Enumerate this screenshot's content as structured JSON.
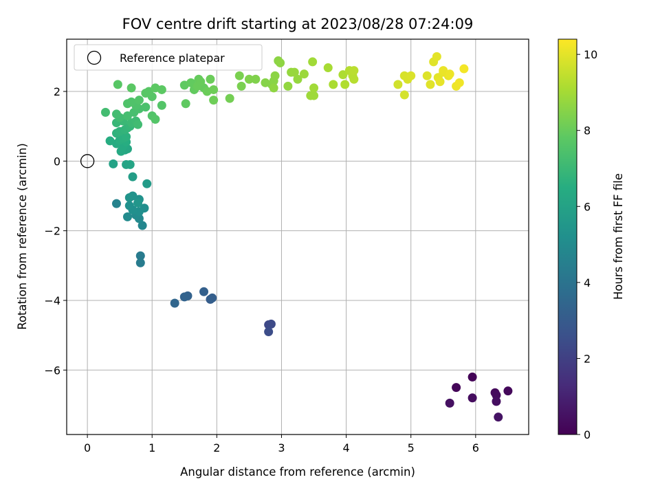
{
  "chart_data": {
    "type": "scatter",
    "title": "FOV centre drift starting at 2023/08/28 07:24:09",
    "xlabel": "Angular distance from reference (arcmin)",
    "ylabel": "Rotation from reference (arcmin)",
    "xlim": [
      -0.32,
      6.82
    ],
    "ylim": [
      -7.85,
      3.5
    ],
    "x_ticks": [
      0,
      1,
      2,
      3,
      4,
      5,
      6
    ],
    "y_ticks": [
      -6,
      -4,
      -2,
      0,
      2
    ],
    "grid": true,
    "legend": {
      "placement": "top-left",
      "entries": [
        "Reference platepar"
      ]
    },
    "reference_point": {
      "x": 0,
      "y": 0
    },
    "colorbar": {
      "label": "Hours from first FF file",
      "range": [
        0,
        10.4
      ],
      "ticks": [
        0,
        2,
        4,
        6,
        8,
        10
      ],
      "colormap": "viridis"
    },
    "series": [
      {
        "points": [
          {
            "x": 5.95,
            "y": -6.2,
            "c": 0.1
          },
          {
            "x": 5.7,
            "y": -6.5,
            "c": 0.15
          },
          {
            "x": 6.5,
            "y": -6.6,
            "c": 0.2
          },
          {
            "x": 6.3,
            "y": -6.65,
            "c": 0.25
          },
          {
            "x": 6.32,
            "y": -6.72,
            "c": 0.3
          },
          {
            "x": 5.95,
            "y": -6.8,
            "c": 0.35
          },
          {
            "x": 6.32,
            "y": -6.9,
            "c": 0.4
          },
          {
            "x": 5.6,
            "y": -6.95,
            "c": 0.45
          },
          {
            "x": 6.35,
            "y": -7.35,
            "c": 0.55
          },
          {
            "x": 2.8,
            "y": -4.7,
            "c": 2.3
          },
          {
            "x": 2.84,
            "y": -4.68,
            "c": 2.35
          },
          {
            "x": 2.8,
            "y": -4.9,
            "c": 2.45
          },
          {
            "x": 1.9,
            "y": -3.97,
            "c": 3.1
          },
          {
            "x": 1.93,
            "y": -3.93,
            "c": 3.15
          },
          {
            "x": 1.8,
            "y": -3.75,
            "c": 3.2
          },
          {
            "x": 1.55,
            "y": -3.87,
            "c": 3.3
          },
          {
            "x": 1.5,
            "y": -3.9,
            "c": 3.35
          },
          {
            "x": 1.35,
            "y": -4.08,
            "c": 3.45
          },
          {
            "x": 0.82,
            "y": -2.72,
            "c": 4.3
          },
          {
            "x": 0.82,
            "y": -2.92,
            "c": 4.35
          },
          {
            "x": 0.45,
            "y": -1.22,
            "c": 4.6
          },
          {
            "x": 0.85,
            "y": -1.85,
            "c": 4.8
          },
          {
            "x": 0.8,
            "y": -1.65,
            "c": 4.9
          },
          {
            "x": 0.75,
            "y": -1.55,
            "c": 5.0
          },
          {
            "x": 0.62,
            "y": -1.6,
            "c": 5.0
          },
          {
            "x": 0.88,
            "y": -1.35,
            "c": 5.1
          },
          {
            "x": 0.8,
            "y": -1.45,
            "c": 5.15
          },
          {
            "x": 0.7,
            "y": -1.4,
            "c": 5.2
          },
          {
            "x": 0.65,
            "y": -1.28,
            "c": 5.25
          },
          {
            "x": 0.8,
            "y": -1.1,
            "c": 5.3
          },
          {
            "x": 0.7,
            "y": -1.0,
            "c": 5.35
          },
          {
            "x": 0.65,
            "y": -1.05,
            "c": 5.4
          },
          {
            "x": 0.78,
            "y": -1.2,
            "c": 5.45
          },
          {
            "x": 0.92,
            "y": -0.65,
            "c": 5.7
          },
          {
            "x": 0.7,
            "y": -0.45,
            "c": 5.8
          },
          {
            "x": 0.4,
            "y": -0.08,
            "c": 6.0
          },
          {
            "x": 0.6,
            "y": -0.1,
            "c": 6.05
          },
          {
            "x": 0.66,
            "y": -0.1,
            "c": 6.1
          },
          {
            "x": 0.58,
            "y": 0.32,
            "c": 6.2
          },
          {
            "x": 0.62,
            "y": 0.35,
            "c": 6.25
          },
          {
            "x": 0.52,
            "y": 0.28,
            "c": 6.3
          },
          {
            "x": 0.55,
            "y": 0.42,
            "c": 6.35
          },
          {
            "x": 0.45,
            "y": 0.5,
            "c": 6.4
          },
          {
            "x": 0.35,
            "y": 0.58,
            "c": 6.45
          },
          {
            "x": 0.6,
            "y": 0.55,
            "c": 6.5
          },
          {
            "x": 0.5,
            "y": 0.6,
            "c": 6.55
          },
          {
            "x": 0.55,
            "y": 0.65,
            "c": 6.6
          },
          {
            "x": 0.6,
            "y": 0.7,
            "c": 6.65
          },
          {
            "x": 0.45,
            "y": 0.8,
            "c": 6.7
          },
          {
            "x": 0.5,
            "y": 0.85,
            "c": 6.75
          },
          {
            "x": 0.58,
            "y": 0.9,
            "c": 6.8
          },
          {
            "x": 0.62,
            "y": 0.95,
            "c": 6.85
          },
          {
            "x": 0.66,
            "y": 1.0,
            "c": 6.9
          },
          {
            "x": 0.45,
            "y": 1.1,
            "c": 6.95
          },
          {
            "x": 0.55,
            "y": 1.15,
            "c": 7.0
          },
          {
            "x": 0.68,
            "y": 1.1,
            "c": 7.05
          },
          {
            "x": 0.75,
            "y": 1.15,
            "c": 7.1
          },
          {
            "x": 0.78,
            "y": 1.05,
            "c": 7.15
          },
          {
            "x": 0.5,
            "y": 1.25,
            "c": 7.15
          },
          {
            "x": 0.45,
            "y": 1.35,
            "c": 7.2
          },
          {
            "x": 0.28,
            "y": 1.4,
            "c": 7.2
          },
          {
            "x": 0.62,
            "y": 1.3,
            "c": 7.25
          },
          {
            "x": 0.72,
            "y": 1.4,
            "c": 7.3
          },
          {
            "x": 0.8,
            "y": 1.5,
            "c": 7.35
          },
          {
            "x": 0.9,
            "y": 1.55,
            "c": 7.4
          },
          {
            "x": 0.75,
            "y": 1.6,
            "c": 7.45
          },
          {
            "x": 0.62,
            "y": 1.65,
            "c": 7.5
          },
          {
            "x": 0.68,
            "y": 1.7,
            "c": 7.5
          },
          {
            "x": 0.8,
            "y": 1.75,
            "c": 7.55
          },
          {
            "x": 1.0,
            "y": 1.3,
            "c": 7.55
          },
          {
            "x": 1.05,
            "y": 1.2,
            "c": 7.6
          },
          {
            "x": 1.15,
            "y": 1.6,
            "c": 7.6
          },
          {
            "x": 1.0,
            "y": 1.85,
            "c": 7.65
          },
          {
            "x": 0.9,
            "y": 1.95,
            "c": 7.7
          },
          {
            "x": 0.95,
            "y": 2.0,
            "c": 7.7
          },
          {
            "x": 0.68,
            "y": 2.1,
            "c": 7.75
          },
          {
            "x": 0.47,
            "y": 2.2,
            "c": 7.7
          },
          {
            "x": 1.05,
            "y": 2.1,
            "c": 7.8
          },
          {
            "x": 1.15,
            "y": 2.05,
            "c": 7.8
          },
          {
            "x": 1.5,
            "y": 2.18,
            "c": 7.85
          },
          {
            "x": 1.52,
            "y": 1.65,
            "c": 7.85
          },
          {
            "x": 1.6,
            "y": 2.25,
            "c": 7.9
          },
          {
            "x": 1.65,
            "y": 2.05,
            "c": 7.9
          },
          {
            "x": 1.72,
            "y": 2.35,
            "c": 7.95
          },
          {
            "x": 1.8,
            "y": 2.1,
            "c": 7.95
          },
          {
            "x": 1.7,
            "y": 2.15,
            "c": 8.0
          },
          {
            "x": 1.75,
            "y": 2.28,
            "c": 8.0
          },
          {
            "x": 1.85,
            "y": 2.0,
            "c": 8.05
          },
          {
            "x": 1.9,
            "y": 2.35,
            "c": 8.05
          },
          {
            "x": 1.95,
            "y": 2.05,
            "c": 8.1
          },
          {
            "x": 1.95,
            "y": 1.75,
            "c": 8.1
          },
          {
            "x": 2.2,
            "y": 1.8,
            "c": 8.2
          },
          {
            "x": 2.35,
            "y": 2.45,
            "c": 8.3
          },
          {
            "x": 2.38,
            "y": 2.15,
            "c": 8.3
          },
          {
            "x": 2.5,
            "y": 2.35,
            "c": 8.4
          },
          {
            "x": 2.6,
            "y": 2.35,
            "c": 8.4
          },
          {
            "x": 2.75,
            "y": 2.25,
            "c": 8.5
          },
          {
            "x": 2.85,
            "y": 2.2,
            "c": 8.5
          },
          {
            "x": 2.88,
            "y": 2.3,
            "c": 8.55
          },
          {
            "x": 2.9,
            "y": 2.45,
            "c": 8.6
          },
          {
            "x": 2.95,
            "y": 2.88,
            "c": 8.6
          },
          {
            "x": 2.98,
            "y": 2.82,
            "c": 8.65
          },
          {
            "x": 2.88,
            "y": 2.1,
            "c": 8.65
          },
          {
            "x": 3.1,
            "y": 2.15,
            "c": 8.7
          },
          {
            "x": 3.15,
            "y": 2.55,
            "c": 8.75
          },
          {
            "x": 3.25,
            "y": 2.35,
            "c": 8.75
          },
          {
            "x": 3.2,
            "y": 2.55,
            "c": 8.8
          },
          {
            "x": 3.35,
            "y": 2.5,
            "c": 8.85
          },
          {
            "x": 3.45,
            "y": 1.88,
            "c": 8.9
          },
          {
            "x": 3.5,
            "y": 1.88,
            "c": 8.9
          },
          {
            "x": 3.5,
            "y": 2.1,
            "c": 8.95
          },
          {
            "x": 3.48,
            "y": 2.85,
            "c": 8.95
          },
          {
            "x": 3.72,
            "y": 2.68,
            "c": 9.05
          },
          {
            "x": 3.8,
            "y": 2.2,
            "c": 9.1
          },
          {
            "x": 3.95,
            "y": 2.48,
            "c": 9.15
          },
          {
            "x": 3.98,
            "y": 2.2,
            "c": 9.2
          },
          {
            "x": 4.05,
            "y": 2.6,
            "c": 9.25
          },
          {
            "x": 4.1,
            "y": 2.45,
            "c": 9.3
          },
          {
            "x": 4.12,
            "y": 2.35,
            "c": 9.3
          },
          {
            "x": 4.12,
            "y": 2.6,
            "c": 9.35
          },
          {
            "x": 4.8,
            "y": 2.2,
            "c": 9.7
          },
          {
            "x": 4.9,
            "y": 1.9,
            "c": 9.75
          },
          {
            "x": 4.9,
            "y": 2.45,
            "c": 9.8
          },
          {
            "x": 4.95,
            "y": 2.35,
            "c": 9.8
          },
          {
            "x": 5.0,
            "y": 2.45,
            "c": 9.85
          },
          {
            "x": 5.25,
            "y": 2.45,
            "c": 9.9
          },
          {
            "x": 5.3,
            "y": 2.2,
            "c": 9.95
          },
          {
            "x": 5.35,
            "y": 2.85,
            "c": 9.95
          },
          {
            "x": 5.4,
            "y": 3.0,
            "c": 10.0
          },
          {
            "x": 5.42,
            "y": 2.4,
            "c": 10.0
          },
          {
            "x": 5.45,
            "y": 2.28,
            "c": 10.05
          },
          {
            "x": 5.5,
            "y": 2.55,
            "c": 10.05
          },
          {
            "x": 5.5,
            "y": 2.6,
            "c": 10.1
          },
          {
            "x": 5.58,
            "y": 2.45,
            "c": 10.1
          },
          {
            "x": 5.6,
            "y": 2.5,
            "c": 10.15
          },
          {
            "x": 5.7,
            "y": 2.15,
            "c": 10.15
          },
          {
            "x": 5.75,
            "y": 2.25,
            "c": 10.2
          },
          {
            "x": 5.82,
            "y": 2.65,
            "c": 10.25
          }
        ]
      }
    ]
  }
}
